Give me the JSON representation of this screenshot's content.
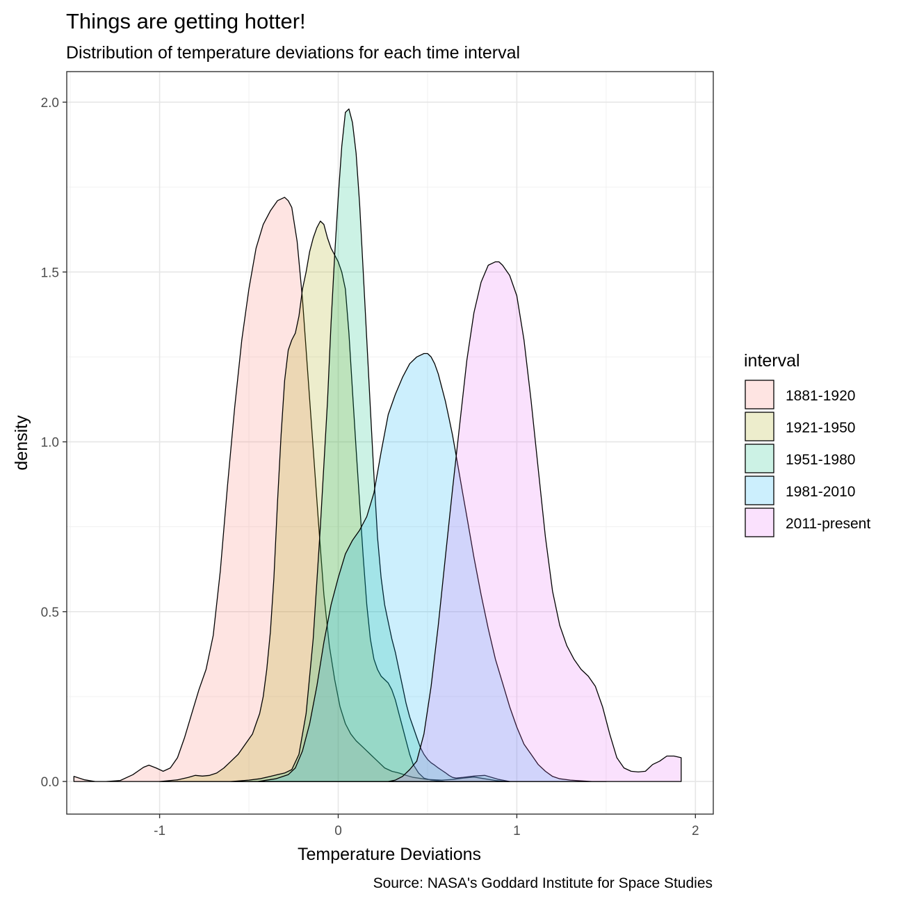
{
  "chart_data": {
    "type": "area",
    "title": "Things are getting hotter!",
    "subtitle": "Distribution of temperature deviations for each time interval",
    "xlabel": "Temperature Deviations",
    "ylabel": "density",
    "caption": "Source: NASA's Goddard Institute for Space Studies",
    "xlim": [
      -1.52,
      2.1
    ],
    "ylim": [
      -0.096,
      2.09
    ],
    "x_ticks": [
      -1,
      0,
      1,
      2
    ],
    "x_tick_labels": [
      "-1",
      "0",
      "1",
      "2"
    ],
    "y_ticks": [
      0,
      0.5,
      1,
      1.5,
      2
    ],
    "y_tick_labels": [
      "0.0",
      "0.5",
      "1.0",
      "1.5",
      "2.0"
    ],
    "grid": true,
    "legend": {
      "title": "interval",
      "position": "right"
    },
    "series": [
      {
        "name": "1881-1920",
        "color": "#F8766D",
        "x": [
          -1.48,
          -1.42,
          -1.36,
          -1.3,
          -1.22,
          -1.15,
          -1.09,
          -1.06,
          -1.02,
          -0.98,
          -0.94,
          -0.9,
          -0.86,
          -0.82,
          -0.78,
          -0.74,
          -0.7,
          -0.66,
          -0.62,
          -0.58,
          -0.54,
          -0.5,
          -0.46,
          -0.42,
          -0.38,
          -0.34,
          -0.3,
          -0.28,
          -0.26,
          -0.23,
          -0.2,
          -0.17,
          -0.14,
          -0.11,
          -0.08,
          -0.05,
          -0.02,
          0.01,
          0.04,
          0.07,
          0.1,
          0.14,
          0.18,
          0.22,
          0.26,
          0.3,
          0.34,
          0.38,
          0.42,
          0.5,
          0.58,
          0.64,
          0.7,
          0.76,
          0.82,
          0.88,
          0.92,
          0.96
        ],
        "y": [
          0.015,
          0.005,
          0.0,
          0.0,
          0.003,
          0.02,
          0.042,
          0.048,
          0.04,
          0.03,
          0.04,
          0.07,
          0.13,
          0.2,
          0.27,
          0.33,
          0.43,
          0.62,
          0.87,
          1.1,
          1.3,
          1.45,
          1.57,
          1.64,
          1.68,
          1.71,
          1.72,
          1.71,
          1.69,
          1.59,
          1.42,
          1.2,
          0.98,
          0.76,
          0.55,
          0.4,
          0.3,
          0.22,
          0.17,
          0.14,
          0.12,
          0.1,
          0.08,
          0.06,
          0.04,
          0.03,
          0.025,
          0.018,
          0.012,
          0.006,
          0.004,
          0.006,
          0.01,
          0.013,
          0.008,
          0.003,
          0.001,
          0.0
        ]
      },
      {
        "name": "1921-1950",
        "color": "#A3A500",
        "x": [
          -1.0,
          -0.9,
          -0.84,
          -0.8,
          -0.76,
          -0.72,
          -0.68,
          -0.64,
          -0.6,
          -0.56,
          -0.52,
          -0.48,
          -0.46,
          -0.44,
          -0.42,
          -0.4,
          -0.38,
          -0.36,
          -0.34,
          -0.32,
          -0.3,
          -0.28,
          -0.26,
          -0.24,
          -0.22,
          -0.2,
          -0.18,
          -0.16,
          -0.14,
          -0.12,
          -0.1,
          -0.08,
          -0.06,
          -0.04,
          -0.02,
          0.0,
          0.02,
          0.04,
          0.06,
          0.08,
          0.1,
          0.12,
          0.14,
          0.16,
          0.18,
          0.2,
          0.22,
          0.24,
          0.26,
          0.28,
          0.3,
          0.32,
          0.34,
          0.36,
          0.38,
          0.4,
          0.42,
          0.45,
          0.48,
          0.52,
          0.56,
          0.6,
          0.66,
          0.72,
          0.8,
          0.9
        ],
        "y": [
          0.0,
          0.005,
          0.012,
          0.018,
          0.016,
          0.018,
          0.025,
          0.04,
          0.06,
          0.08,
          0.11,
          0.14,
          0.17,
          0.2,
          0.25,
          0.33,
          0.44,
          0.6,
          0.82,
          1.02,
          1.18,
          1.27,
          1.3,
          1.32,
          1.37,
          1.45,
          1.5,
          1.56,
          1.6,
          1.63,
          1.65,
          1.64,
          1.6,
          1.57,
          1.55,
          1.53,
          1.5,
          1.45,
          1.32,
          1.15,
          0.98,
          0.82,
          0.66,
          0.52,
          0.42,
          0.36,
          0.33,
          0.31,
          0.3,
          0.29,
          0.27,
          0.24,
          0.2,
          0.16,
          0.12,
          0.08,
          0.05,
          0.025,
          0.01,
          0.004,
          0.002,
          0.0,
          0.0,
          0.0,
          0.0,
          0.0
        ]
      },
      {
        "name": "1951-1980",
        "color": "#00BF7D",
        "x": [
          -0.6,
          -0.5,
          -0.44,
          -0.38,
          -0.34,
          -0.3,
          -0.26,
          -0.22,
          -0.18,
          -0.14,
          -0.1,
          -0.06,
          -0.04,
          -0.02,
          0.0,
          0.02,
          0.04,
          0.06,
          0.08,
          0.1,
          0.12,
          0.14,
          0.16,
          0.18,
          0.2,
          0.22,
          0.24,
          0.26,
          0.28,
          0.3,
          0.32,
          0.34,
          0.36,
          0.38,
          0.4,
          0.42,
          0.44,
          0.46,
          0.48,
          0.5,
          0.52,
          0.54,
          0.56,
          0.58,
          0.6,
          0.62,
          0.64,
          0.66,
          0.7,
          0.76,
          0.82,
          0.86,
          0.9,
          0.96
        ],
        "y": [
          0.0,
          0.004,
          0.008,
          0.015,
          0.02,
          0.025,
          0.035,
          0.08,
          0.2,
          0.42,
          0.75,
          1.12,
          1.35,
          1.55,
          1.72,
          1.87,
          1.97,
          1.98,
          1.94,
          1.85,
          1.7,
          1.5,
          1.3,
          1.1,
          0.9,
          0.72,
          0.6,
          0.52,
          0.47,
          0.42,
          0.38,
          0.33,
          0.28,
          0.23,
          0.19,
          0.16,
          0.13,
          0.1,
          0.08,
          0.065,
          0.055,
          0.048,
          0.04,
          0.033,
          0.026,
          0.018,
          0.012,
          0.01,
          0.012,
          0.016,
          0.018,
          0.012,
          0.006,
          0.0
        ]
      },
      {
        "name": "1981-2010",
        "color": "#00B0F6",
        "x": [
          -0.45,
          -0.35,
          -0.28,
          -0.24,
          -0.2,
          -0.16,
          -0.12,
          -0.08,
          -0.04,
          0.0,
          0.04,
          0.08,
          0.12,
          0.16,
          0.2,
          0.24,
          0.28,
          0.32,
          0.36,
          0.4,
          0.44,
          0.48,
          0.5,
          0.52,
          0.54,
          0.56,
          0.58,
          0.6,
          0.62,
          0.64,
          0.66,
          0.68,
          0.7,
          0.72,
          0.76,
          0.8,
          0.84,
          0.88,
          0.92,
          0.96,
          1.0,
          1.04,
          1.08,
          1.12,
          1.16,
          1.2,
          1.24,
          1.3,
          1.36,
          1.42,
          1.5
        ],
        "y": [
          0.0,
          0.008,
          0.02,
          0.04,
          0.09,
          0.17,
          0.28,
          0.41,
          0.52,
          0.6,
          0.67,
          0.71,
          0.74,
          0.78,
          0.85,
          0.97,
          1.08,
          1.14,
          1.19,
          1.23,
          1.25,
          1.26,
          1.26,
          1.25,
          1.23,
          1.2,
          1.16,
          1.12,
          1.07,
          1.02,
          0.96,
          0.9,
          0.84,
          0.78,
          0.66,
          0.55,
          0.45,
          0.36,
          0.29,
          0.22,
          0.16,
          0.11,
          0.08,
          0.05,
          0.03,
          0.015,
          0.008,
          0.004,
          0.002,
          0.0,
          0.0
        ]
      },
      {
        "name": "2011-present",
        "color": "#E76BF3",
        "x": [
          0.28,
          0.32,
          0.36,
          0.4,
          0.44,
          0.48,
          0.52,
          0.56,
          0.6,
          0.64,
          0.68,
          0.72,
          0.76,
          0.8,
          0.84,
          0.88,
          0.9,
          0.92,
          0.96,
          1.0,
          1.04,
          1.08,
          1.12,
          1.16,
          1.2,
          1.24,
          1.28,
          1.32,
          1.36,
          1.4,
          1.44,
          1.48,
          1.52,
          1.56,
          1.6,
          1.64,
          1.68,
          1.72,
          1.76,
          1.8,
          1.84,
          1.88,
          1.92
        ],
        "y": [
          0.0,
          0.004,
          0.015,
          0.035,
          0.06,
          0.14,
          0.28,
          0.46,
          0.66,
          0.86,
          1.05,
          1.24,
          1.38,
          1.47,
          1.52,
          1.53,
          1.53,
          1.52,
          1.49,
          1.43,
          1.3,
          1.12,
          0.92,
          0.72,
          0.56,
          0.46,
          0.4,
          0.36,
          0.33,
          0.31,
          0.28,
          0.22,
          0.14,
          0.07,
          0.04,
          0.03,
          0.028,
          0.03,
          0.05,
          0.06,
          0.075,
          0.075,
          0.07
        ]
      }
    ]
  }
}
